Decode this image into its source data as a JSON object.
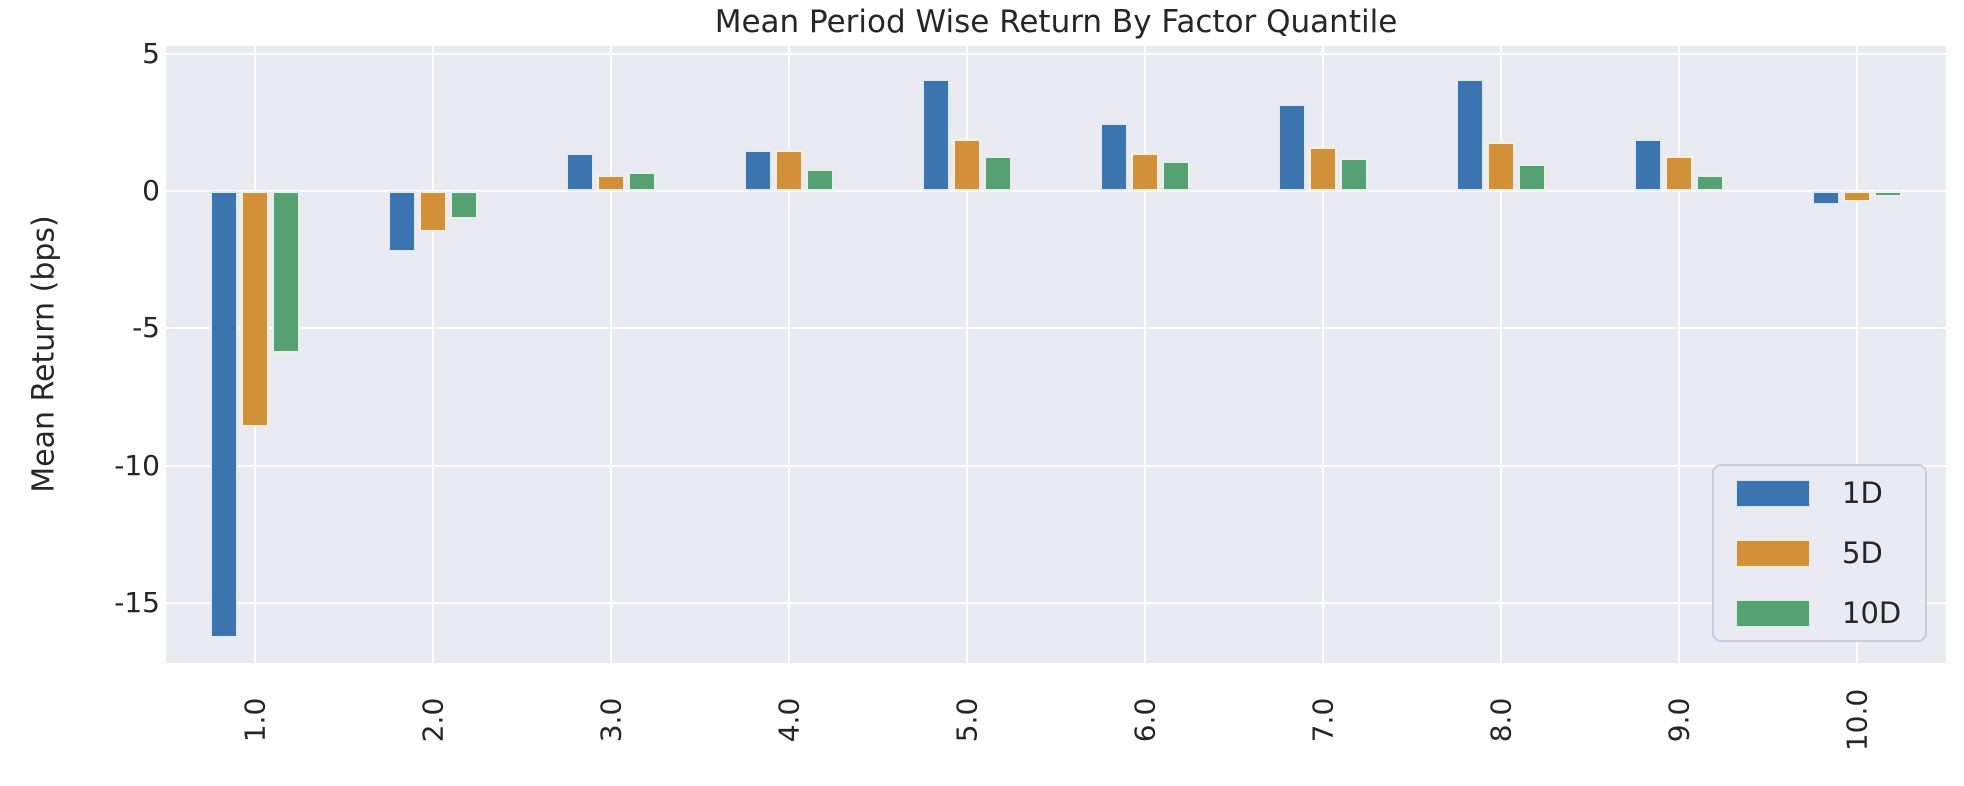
{
  "chart_data": {
    "type": "bar",
    "title": "Mean Period Wise Return By Factor Quantile",
    "ylabel": "Mean Return (bps)",
    "xlabel": "",
    "categories": [
      "1.0",
      "2.0",
      "3.0",
      "4.0",
      "5.0",
      "6.0",
      "7.0",
      "8.0",
      "9.0",
      "10.0"
    ],
    "series": [
      {
        "name": "1D",
        "color": "#3b74ae",
        "values": [
          -16.3,
          -2.2,
          1.4,
          1.5,
          4.1,
          2.5,
          3.2,
          4.1,
          1.9,
          -0.5
        ]
      },
      {
        "name": "5D",
        "color": "#d29038",
        "values": [
          -8.6,
          -1.5,
          0.6,
          1.5,
          1.9,
          1.4,
          1.6,
          1.8,
          1.3,
          -0.4
        ]
      },
      {
        "name": "10D",
        "color": "#55a172",
        "values": [
          -5.9,
          -1.0,
          0.7,
          0.8,
          1.3,
          1.1,
          1.2,
          1.0,
          0.6,
          -0.2
        ]
      }
    ],
    "yticks": [
      "5",
      "0",
      "-5",
      "-10",
      "-15"
    ],
    "ytick_values": [
      5,
      0,
      -5,
      -10,
      -15
    ],
    "ylim": [
      -17.2,
      5.3
    ],
    "grid": true,
    "legend_position": "lower right",
    "colors": {
      "plot_background": "#eaeaf2",
      "figure_background": "#ffffff",
      "gridline": "#ffffff",
      "text": "#262626"
    }
  }
}
